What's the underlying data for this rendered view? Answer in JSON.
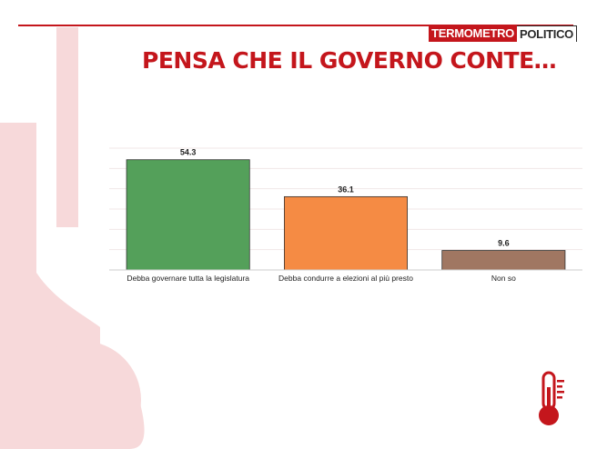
{
  "header": {
    "logo_part1": "TERMOMETRO",
    "logo_part2": "POLITICO",
    "title": "PENSA CHE IL GOVERNO CONTE…"
  },
  "colors": {
    "brand_red": "#c4161c",
    "decor_pink": "#f7d9da"
  },
  "icons": [
    "thermometer-icon"
  ],
  "chart_data": {
    "type": "bar",
    "title": "",
    "xlabel": "",
    "ylabel": "",
    "ylim": [
      0,
      60
    ],
    "grid": true,
    "categories": [
      "Debba governare tutta la legislatura",
      "Debba condurre a elezioni al più presto",
      "Non so"
    ],
    "values": [
      54.3,
      36.1,
      9.6
    ],
    "value_labels": [
      "54.3",
      "36.1",
      "9.6"
    ],
    "bar_colors": [
      "#54a05a",
      "#f58b44",
      "#a07762"
    ]
  }
}
